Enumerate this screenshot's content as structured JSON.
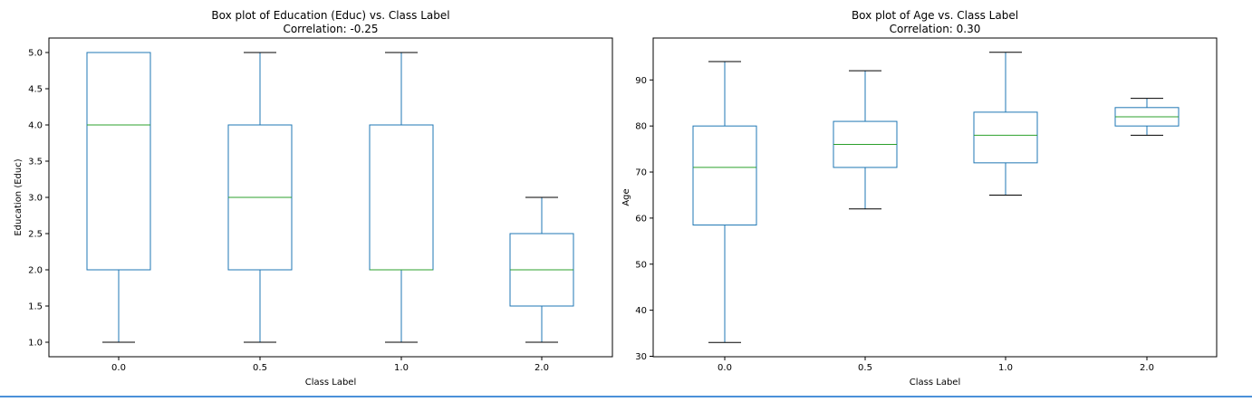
{
  "chart_data": [
    {
      "type": "box",
      "title": "Box plot of Education (Educ) vs. Class Label",
      "subtitle": "Correlation: -0.25",
      "xlabel": "Class Label",
      "ylabel": "Education (Educ)",
      "categories": [
        "0.0",
        "0.5",
        "1.0",
        "2.0"
      ],
      "ylim": [
        0.8,
        5.2
      ],
      "yticks": [
        1.0,
        1.5,
        2.0,
        2.5,
        3.0,
        3.5,
        4.0,
        4.5,
        5.0
      ],
      "ytick_labels": [
        "1.0",
        "1.5",
        "2.0",
        "2.5",
        "3.0",
        "3.5",
        "4.0",
        "4.5",
        "5.0"
      ],
      "boxes": [
        {
          "category": "0.0",
          "whisker_low": 1.0,
          "q1": 2.0,
          "median": 4.0,
          "q3": 5.0,
          "whisker_high": 5.0
        },
        {
          "category": "0.5",
          "whisker_low": 1.0,
          "q1": 2.0,
          "median": 3.0,
          "q3": 4.0,
          "whisker_high": 5.0
        },
        {
          "category": "1.0",
          "whisker_low": 1.0,
          "q1": 2.0,
          "median": 2.0,
          "q3": 4.0,
          "whisker_high": 5.0
        },
        {
          "category": "2.0",
          "whisker_low": 1.0,
          "q1": 1.5,
          "median": 2.0,
          "q3": 2.5,
          "whisker_high": 3.0
        }
      ],
      "grid": false,
      "colors": {
        "box": "#1f77b4",
        "median": "#2ca02c",
        "cap": "#000000"
      }
    },
    {
      "type": "box",
      "title": "Box plot of Age vs. Class Label",
      "subtitle": "Correlation: 0.30",
      "xlabel": "Class Label",
      "ylabel": "Age",
      "categories": [
        "0.0",
        "0.5",
        "1.0",
        "2.0"
      ],
      "ylim": [
        29.9,
        99.1
      ],
      "yticks": [
        30,
        40,
        50,
        60,
        70,
        80,
        90
      ],
      "ytick_labels": [
        "30",
        "40",
        "50",
        "60",
        "70",
        "80",
        "90"
      ],
      "boxes": [
        {
          "category": "0.0",
          "whisker_low": 33,
          "q1": 58.5,
          "median": 71,
          "q3": 80,
          "whisker_high": 94
        },
        {
          "category": "0.5",
          "whisker_low": 62,
          "q1": 71,
          "median": 76,
          "q3": 81,
          "whisker_high": 92
        },
        {
          "category": "1.0",
          "whisker_low": 65,
          "q1": 72,
          "median": 78,
          "q3": 83,
          "whisker_high": 96
        },
        {
          "category": "2.0",
          "whisker_low": 78,
          "q1": 80,
          "median": 82,
          "q3": 84,
          "whisker_high": 86
        }
      ],
      "grid": false,
      "colors": {
        "box": "#1f77b4",
        "median": "#2ca02c",
        "cap": "#000000"
      }
    }
  ]
}
